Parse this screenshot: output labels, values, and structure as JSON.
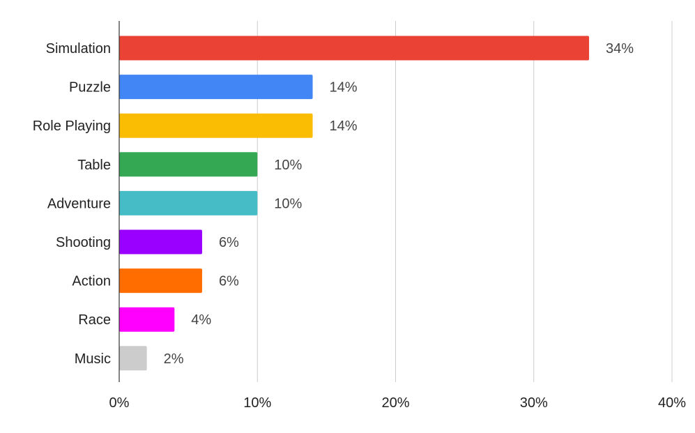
{
  "chart_data": {
    "type": "bar",
    "orientation": "horizontal",
    "title": "",
    "xlabel": "",
    "ylabel": "",
    "categories": [
      "Simulation",
      "Puzzle",
      "Role Playing",
      "Table",
      "Adventure",
      "Shooting",
      "Action",
      "Race",
      "Music"
    ],
    "values": [
      34,
      14,
      14,
      10,
      10,
      6,
      6,
      4,
      2
    ],
    "value_labels": [
      "34%",
      "14%",
      "14%",
      "10%",
      "10%",
      "6%",
      "6%",
      "4%",
      "2%"
    ],
    "colors": [
      "#ea4335",
      "#4285f4",
      "#fbbc04",
      "#34a853",
      "#46bdc6",
      "#9900ff",
      "#ff6d01",
      "#ff00ff",
      "#cccccc"
    ],
    "xlim": [
      0,
      40
    ],
    "x_ticks": [
      0,
      10,
      20,
      30,
      40
    ],
    "x_tick_labels": [
      "0%",
      "10%",
      "20%",
      "30%",
      "40%"
    ],
    "grid": true,
    "legend": "none"
  }
}
